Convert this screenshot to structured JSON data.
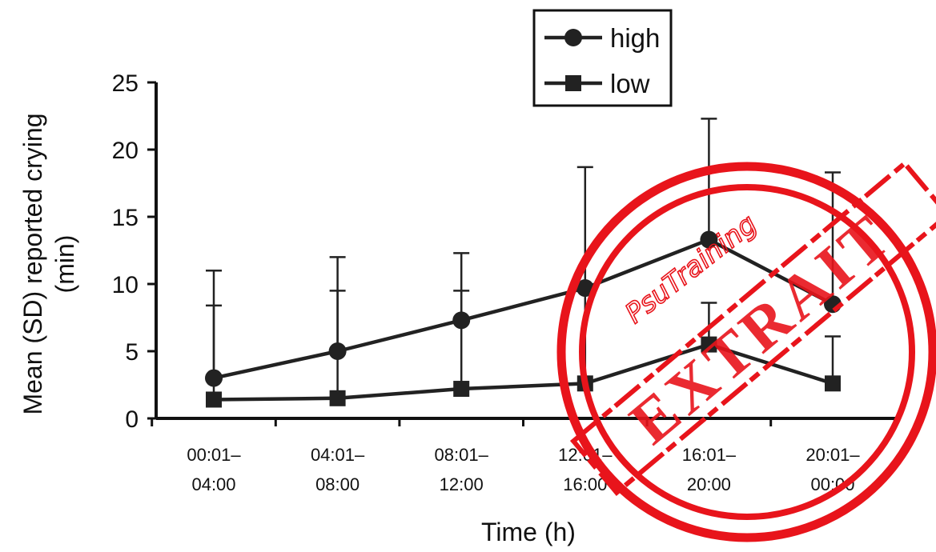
{
  "chart_data": {
    "type": "line",
    "xlabel": "Time (h)",
    "ylabel_line1": "Mean (SD) reported crying",
    "ylabel_line2": "(min)",
    "ylim": [
      0,
      25
    ],
    "yticks": [
      0,
      5,
      10,
      15,
      20,
      25
    ],
    "categories": [
      {
        "line1": "00:01–",
        "line2": "04:00"
      },
      {
        "line1": "04:01–",
        "line2": "08:00"
      },
      {
        "line1": "08:01–",
        "line2": "12:00"
      },
      {
        "line1": "12:01–",
        "line2": "16:00"
      },
      {
        "line1": "16:01–",
        "line2": "20:00"
      },
      {
        "line1": "20:01–",
        "line2": "00:00"
      }
    ],
    "series": [
      {
        "name": "high",
        "marker": "circle",
        "values": [
          3.0,
          5.0,
          7.3,
          9.7,
          13.3,
          8.5
        ],
        "error_upper": [
          11.0,
          12.0,
          12.3,
          18.7,
          22.3,
          18.3
        ]
      },
      {
        "name": "low",
        "marker": "square",
        "values": [
          1.4,
          1.5,
          2.2,
          2.6,
          5.5,
          2.6
        ],
        "error_upper": [
          8.4,
          9.5,
          9.5,
          9.5,
          8.6,
          6.1
        ]
      }
    ],
    "legend": "top-right",
    "grid": false,
    "line_color": "#222222",
    "stamp": {
      "color": "#e8141b",
      "script_text": "PsuTraining",
      "word": "EXTRAIT"
    }
  }
}
